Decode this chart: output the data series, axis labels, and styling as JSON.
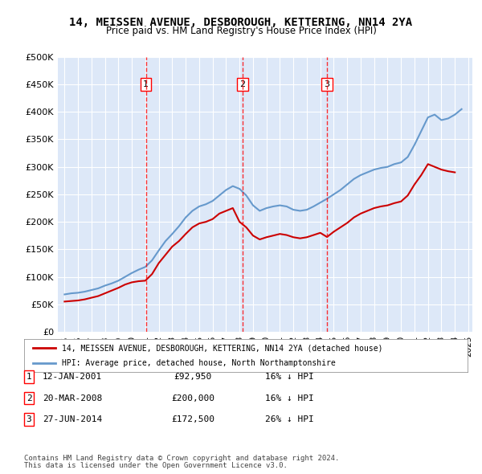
{
  "title": "14, MEISSEN AVENUE, DESBOROUGH, KETTERING, NN14 2YA",
  "subtitle": "Price paid vs. HM Land Registry's House Price Index (HPI)",
  "legend_line1": "14, MEISSEN AVENUE, DESBOROUGH, KETTERING, NN14 2YA (detached house)",
  "legend_line2": "HPI: Average price, detached house, North Northamptonshire",
  "footer1": "Contains HM Land Registry data © Crown copyright and database right 2024.",
  "footer2": "This data is licensed under the Open Government Licence v3.0.",
  "sales": [
    {
      "num": 1,
      "date": "12-JAN-2001",
      "price": 92950,
      "pct": "16%",
      "dir": "↓"
    },
    {
      "num": 2,
      "date": "20-MAR-2008",
      "price": 200000,
      "pct": "16%",
      "dir": "↓"
    },
    {
      "num": 3,
      "date": "27-JUN-2014",
      "price": 172500,
      "pct": "26%",
      "dir": "↓"
    }
  ],
  "sale_years": [
    2001.04,
    2008.22,
    2014.49
  ],
  "sale_prices": [
    92950,
    200000,
    172500
  ],
  "ylim": [
    0,
    500000
  ],
  "yticks": [
    0,
    50000,
    100000,
    150000,
    200000,
    250000,
    300000,
    350000,
    400000,
    450000,
    500000
  ],
  "bg_color": "#dde8f8",
  "plot_bg": "#dde8f8",
  "red_color": "#cc0000",
  "blue_color": "#6699cc",
  "grid_color": "#ffffff",
  "hpi_base_year": 1995,
  "hpi_base_value": 75000
}
